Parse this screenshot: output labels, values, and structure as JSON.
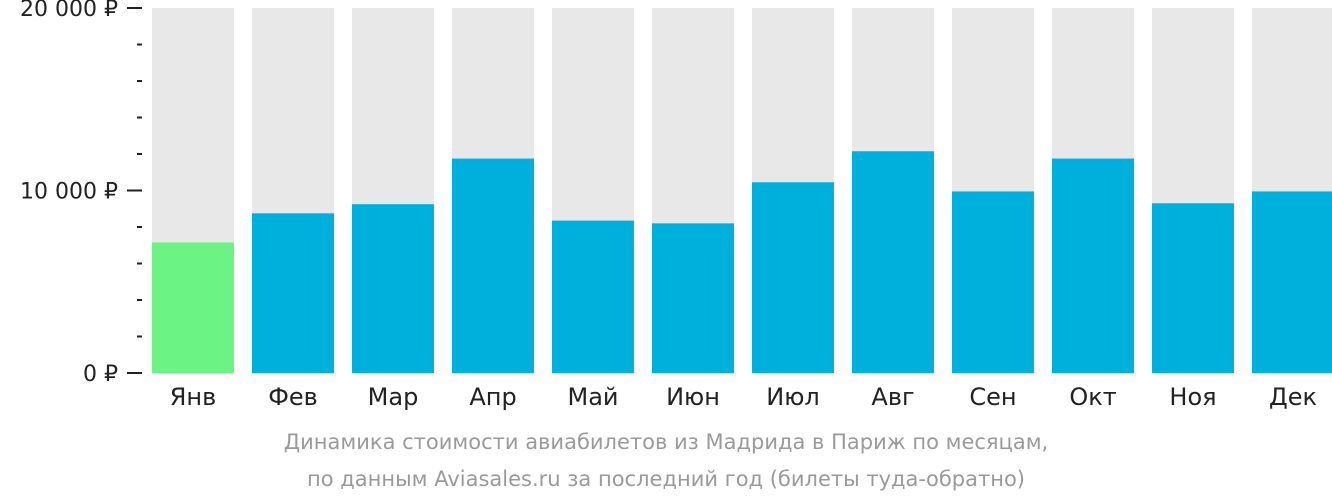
{
  "chart_data": {
    "type": "bar",
    "categories": [
      "Янв",
      "Фев",
      "Мар",
      "Апр",
      "Май",
      "Июн",
      "Июл",
      "Авг",
      "Сен",
      "Окт",
      "Ноя",
      "Дек"
    ],
    "values": [
      7150,
      8750,
      9250,
      11750,
      8350,
      8200,
      10450,
      12150,
      9950,
      11750,
      9300,
      9950
    ],
    "ylim": [
      0,
      20000
    ],
    "y_ticks": [
      {
        "value": 0,
        "label": "0 ₽"
      },
      {
        "value": 10000,
        "label": "10 000 ₽"
      },
      {
        "value": 20000,
        "label": "20 000 ₽"
      }
    ],
    "y_minor_step": 2000,
    "highlight_index": 0,
    "colors": {
      "bar": "#00b0dc",
      "highlight": "#6bf384",
      "background_bar": "#e8e8e8",
      "axis_text": "#222222",
      "caption": "#9a9a9a"
    },
    "caption_line1": "Динамика стоимости авиабилетов из Мадрида в Париж по месяцам,",
    "caption_line2": "по данным Aviasales.ru за последний год (билеты туда-обратно)"
  }
}
